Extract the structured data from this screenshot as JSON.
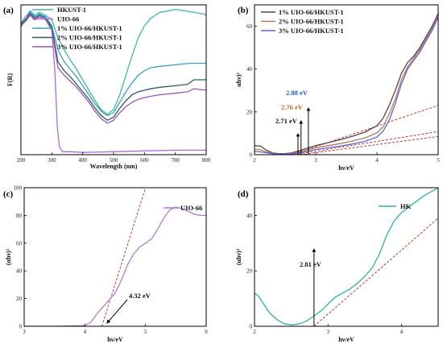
{
  "colors": {
    "hkust": "#3fb8a2",
    "uio66": "#b06ad8",
    "p1": "#3aa3b8",
    "p2": "#2a5f5c",
    "p3": "#9a56c2",
    "b1": "#5a4342",
    "b2": "#b87a55",
    "b3": "#5865e0",
    "uio_c": "#b07ad6",
    "hk_d": "#30b39a",
    "fit": "#c0392b",
    "anno_blue": "#1f5fc8",
    "anno_orange": "#b86a28",
    "anno_black": "#111111"
  },
  "chart_data": [
    {
      "panel": "(a)",
      "type": "line",
      "xlabel": "Wavelength (nm)",
      "ylabel": "F(R)",
      "xlim": [
        200,
        800
      ],
      "ylim": [
        0,
        1
      ],
      "xticks": [
        200,
        300,
        400,
        500,
        600,
        700,
        800
      ],
      "legend": "top-left",
      "series": [
        {
          "name": "HKUST-1",
          "color": "hkust",
          "x": [
            200,
            215,
            230,
            245,
            260,
            280,
            300,
            320,
            340,
            360,
            380,
            400,
            420,
            440,
            460,
            480,
            500,
            520,
            540,
            560,
            580,
            600,
            620,
            650,
            680,
            700,
            730,
            760,
            790,
            800
          ],
          "y": [
            0.88,
            0.92,
            0.96,
            0.93,
            0.95,
            0.93,
            0.9,
            0.78,
            0.7,
            0.63,
            0.57,
            0.5,
            0.43,
            0.36,
            0.3,
            0.27,
            0.3,
            0.4,
            0.53,
            0.66,
            0.78,
            0.86,
            0.91,
            0.95,
            0.96,
            0.97,
            0.96,
            0.95,
            0.94,
            0.93
          ]
        },
        {
          "name": "UIO-66",
          "color": "uio66",
          "x": [
            200,
            215,
            230,
            245,
            260,
            280,
            300,
            310,
            318,
            325,
            335,
            360,
            400,
            500,
            600,
            700,
            800
          ],
          "y": [
            0.85,
            0.92,
            0.95,
            0.91,
            0.93,
            0.92,
            0.84,
            0.55,
            0.18,
            0.05,
            0.02,
            0.02,
            0.015,
            0.02,
            0.025,
            0.03,
            0.03
          ]
        },
        {
          "name": "1% UIO-66/HKUST-1",
          "color": "p1",
          "x": [
            200,
            215,
            230,
            245,
            260,
            280,
            300,
            320,
            340,
            360,
            380,
            400,
            420,
            440,
            460,
            480,
            500,
            520,
            540,
            560,
            580,
            600,
            620,
            650,
            700,
            750,
            800
          ],
          "y": [
            0.88,
            0.9,
            0.95,
            0.92,
            0.94,
            0.92,
            0.86,
            0.7,
            0.62,
            0.57,
            0.52,
            0.46,
            0.4,
            0.34,
            0.29,
            0.26,
            0.28,
            0.35,
            0.42,
            0.48,
            0.53,
            0.56,
            0.58,
            0.59,
            0.6,
            0.61,
            0.61
          ]
        },
        {
          "name": "2% UIO-66/HKUST-1",
          "color": "p2",
          "x": [
            200,
            215,
            230,
            245,
            260,
            280,
            300,
            320,
            340,
            360,
            380,
            400,
            420,
            440,
            460,
            480,
            500,
            520,
            540,
            560,
            580,
            600,
            620,
            650,
            700,
            740,
            760,
            800
          ],
          "y": [
            0.87,
            0.9,
            0.94,
            0.91,
            0.93,
            0.91,
            0.85,
            0.62,
            0.56,
            0.52,
            0.47,
            0.42,
            0.37,
            0.31,
            0.26,
            0.23,
            0.25,
            0.31,
            0.36,
            0.4,
            0.42,
            0.43,
            0.44,
            0.45,
            0.46,
            0.47,
            0.5,
            0.5
          ]
        },
        {
          "name": "3% UIO-66/HKUST-1",
          "color": "p3",
          "x": [
            200,
            215,
            230,
            245,
            260,
            280,
            300,
            320,
            340,
            360,
            380,
            400,
            420,
            440,
            460,
            480,
            500,
            520,
            540,
            560,
            580,
            600,
            620,
            650,
            700,
            740,
            760,
            800
          ],
          "y": [
            0.86,
            0.89,
            0.93,
            0.9,
            0.92,
            0.9,
            0.83,
            0.58,
            0.53,
            0.49,
            0.45,
            0.4,
            0.35,
            0.29,
            0.24,
            0.21,
            0.23,
            0.28,
            0.32,
            0.35,
            0.37,
            0.38,
            0.39,
            0.4,
            0.41,
            0.42,
            0.44,
            0.43
          ]
        }
      ]
    },
    {
      "panel": "(b)",
      "type": "line",
      "xlabel": "hν/eV",
      "ylabel": "αhν)²",
      "xlim": [
        2,
        5
      ],
      "ylim": [
        0,
        70
      ],
      "xticks": [
        2,
        3,
        4,
        5
      ],
      "yticks": [
        0,
        20,
        40,
        60
      ],
      "legend": "top-left",
      "annotations": [
        {
          "text": "2.88 eV",
          "x": 2.88,
          "color": "anno_blue"
        },
        {
          "text": "2.76 eV",
          "x": 2.76,
          "color": "anno_orange"
        },
        {
          "text": "2.71 eV",
          "x": 2.71,
          "color": "anno_black"
        }
      ],
      "series": [
        {
          "name": "1% UIO-66/HKUST-1",
          "color": "b1",
          "x": [
            2.0,
            2.1,
            2.2,
            2.3,
            2.4,
            2.5,
            2.6,
            2.7,
            2.8,
            2.9,
            3.0,
            3.2,
            3.4,
            3.6,
            3.8,
            4.0,
            4.1,
            4.2,
            4.3,
            4.4,
            4.5,
            4.6,
            4.7,
            4.8,
            4.9,
            5.0
          ],
          "y": [
            4.2,
            4.0,
            2.0,
            0.8,
            0.5,
            0.5,
            0.8,
            1.6,
            2.5,
            3.4,
            4.2,
            5.6,
            7.0,
            8.6,
            10.5,
            13.5,
            17,
            23,
            30,
            38,
            43,
            46,
            50,
            55,
            60,
            66
          ]
        },
        {
          "name": "2% UIO-66/HKUST-1",
          "color": "b2",
          "x": [
            2.0,
            2.1,
            2.2,
            2.3,
            2.4,
            2.5,
            2.6,
            2.7,
            2.8,
            2.9,
            3.0,
            3.2,
            3.4,
            3.6,
            3.8,
            4.0,
            4.1,
            4.2,
            4.3,
            4.4,
            4.5,
            4.6,
            4.7,
            4.8,
            4.9,
            5.0
          ],
          "y": [
            2.5,
            2.3,
            1.2,
            0.6,
            0.4,
            0.4,
            0.6,
            1.1,
            1.8,
            2.5,
            3.2,
            4.2,
            5.2,
            6.4,
            7.8,
            10.2,
            13,
            19,
            26,
            35,
            41,
            45,
            49,
            54,
            59,
            65
          ]
        },
        {
          "name": "3% UIO-66/HKUST-1",
          "color": "b3",
          "x": [
            2.0,
            2.1,
            2.2,
            2.3,
            2.4,
            2.5,
            2.6,
            2.7,
            2.8,
            2.9,
            3.0,
            3.2,
            3.4,
            3.6,
            3.8,
            4.0,
            4.1,
            4.2,
            4.3,
            4.4,
            4.5,
            4.6,
            4.7,
            4.8,
            4.9,
            5.0
          ],
          "y": [
            1.5,
            1.3,
            0.8,
            0.4,
            0.3,
            0.3,
            0.4,
            0.7,
            1.2,
            1.8,
            2.4,
            3.2,
            4.0,
            5.0,
            6.2,
            8.2,
            11,
            16,
            24,
            33,
            40,
            44,
            48,
            53,
            58,
            64
          ]
        }
      ],
      "fits": [
        {
          "x": [
            2.55,
            5.0
          ],
          "y": [
            -0.6,
            23
          ],
          "color": "fit"
        },
        {
          "x": [
            2.65,
            5.0
          ],
          "y": [
            0,
            10.8
          ],
          "color": "fit"
        },
        {
          "x": [
            2.75,
            5.0
          ],
          "y": [
            0,
            8.5
          ],
          "color": "fit"
        }
      ]
    },
    {
      "panel": "(c)",
      "type": "line",
      "xlabel": "hν/eV",
      "ylabel": "(αhν)²",
      "xlim": [
        3,
        6
      ],
      "ylim": [
        0,
        100
      ],
      "xticks": [
        3,
        4,
        5,
        6
      ],
      "yticks": [
        0,
        20,
        40,
        60,
        80,
        100
      ],
      "legend": "top-right",
      "annotations": [
        {
          "text": "4.32 eV",
          "x": 4.32,
          "color": "anno_black"
        }
      ],
      "series": [
        {
          "name": "UIO-66",
          "color": "uio_c",
          "x": [
            3.0,
            3.5,
            4.0,
            4.1,
            4.2,
            4.3,
            4.4,
            4.5,
            4.6,
            4.7,
            4.8,
            4.9,
            5.0,
            5.1,
            5.2,
            5.3,
            5.4,
            5.5,
            5.6,
            5.7,
            5.8,
            5.9,
            6.0
          ],
          "y": [
            0,
            0,
            0.5,
            3,
            9,
            14,
            19,
            24,
            33,
            44,
            52,
            57,
            60,
            63,
            70,
            78,
            84,
            86,
            85,
            83,
            81,
            80,
            80
          ]
        }
      ],
      "fits": [
        {
          "x": [
            4.28,
            5.0
          ],
          "y": [
            0,
            100
          ],
          "color": "fit"
        }
      ]
    },
    {
      "panel": "(d)",
      "type": "line",
      "xlabel": "hν/eV",
      "ylabel": "(αhν)²",
      "xlim": [
        2,
        4.5
      ],
      "ylim": [
        0,
        50
      ],
      "xticks": [
        2,
        3,
        4
      ],
      "yticks": [
        0,
        20,
        40
      ],
      "legend": "top-right",
      "annotations": [
        {
          "text": "2.81 eV",
          "x": 2.81,
          "color": "anno_black"
        }
      ],
      "series": [
        {
          "name": "HK",
          "color": "hk_d",
          "x": [
            2.0,
            2.05,
            2.1,
            2.2,
            2.3,
            2.4,
            2.5,
            2.6,
            2.7,
            2.8,
            2.9,
            3.0,
            3.1,
            3.2,
            3.3,
            3.4,
            3.5,
            3.6,
            3.7,
            3.8,
            3.9,
            4.0,
            4.1,
            4.2,
            4.3,
            4.4,
            4.5
          ],
          "y": [
            12,
            11,
            9,
            5,
            2.5,
            1,
            0.5,
            0.8,
            1.8,
            3.5,
            5.5,
            8,
            10.5,
            12,
            13.5,
            15.5,
            18,
            21,
            26,
            33,
            38,
            41,
            43,
            45,
            47,
            48.5,
            50
          ]
        }
      ],
      "fits": [
        {
          "x": [
            2.81,
            4.5
          ],
          "y": [
            0,
            39
          ],
          "color": "fit"
        }
      ]
    }
  ]
}
